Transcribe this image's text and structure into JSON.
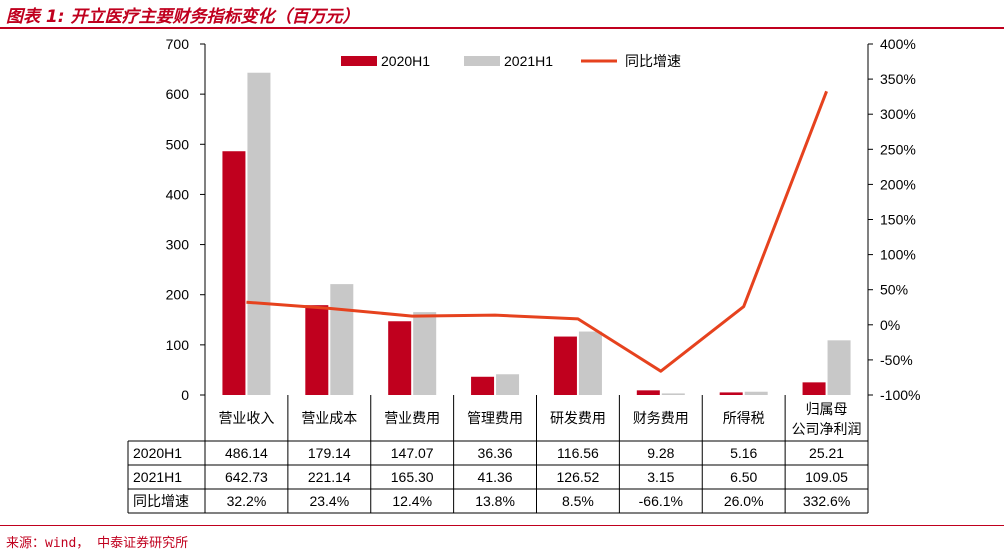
{
  "title": "图表 1:  开立医疗主要财务指标变化（百万元）",
  "source": "来源：wind， 中泰证券研究所",
  "colors": {
    "series_2020": "#c0001e",
    "series_2021": "#c8c8c8",
    "growth_line": "#e6421e",
    "accent": "#c0001e"
  },
  "chart_data": {
    "type": "bar",
    "categories": [
      "营业收入",
      "营业成本",
      "营业费用",
      "管理费用",
      "研发费用",
      "财务费用",
      "所得税",
      "归属母公司净利润"
    ],
    "category_lines": [
      [
        "营业收入"
      ],
      [
        "营业成本"
      ],
      [
        "营业费用"
      ],
      [
        "管理费用"
      ],
      [
        "研发费用"
      ],
      [
        "财务费用"
      ],
      [
        "所得税"
      ],
      [
        "归属母",
        "公司净利润"
      ]
    ],
    "series": [
      {
        "name": "2020H1",
        "values": [
          486.14,
          179.14,
          147.07,
          36.36,
          116.56,
          9.28,
          5.16,
          25.21
        ]
      },
      {
        "name": "2021H1",
        "values": [
          642.73,
          221.14,
          165.3,
          41.36,
          126.52,
          3.15,
          6.5,
          109.05
        ]
      }
    ],
    "line_series": {
      "name": "同比增速",
      "axis": "right",
      "values": [
        32.2,
        23.4,
        12.4,
        13.8,
        8.5,
        -66.1,
        26.0,
        332.6
      ]
    },
    "ylim": [
      0,
      700
    ],
    "yticks": [
      "0",
      "100",
      "200",
      "300",
      "400",
      "500",
      "600",
      "700"
    ],
    "y2lim": [
      -100,
      400
    ],
    "y2ticks": [
      "-100%",
      "-50%",
      "0%",
      "50%",
      "100%",
      "150%",
      "200%",
      "250%",
      "300%",
      "350%",
      "400%"
    ],
    "legend_position": "top-center",
    "grid": false,
    "table": {
      "rows": [
        {
          "label": "2020H1",
          "cells": [
            "486.14",
            "179.14",
            "147.07",
            "36.36",
            "116.56",
            "9.28",
            "5.16",
            "25.21"
          ]
        },
        {
          "label": "2021H1",
          "cells": [
            "642.73",
            "221.14",
            "165.30",
            "41.36",
            "126.52",
            "3.15",
            "6.50",
            "109.05"
          ]
        },
        {
          "label": "同比增速",
          "cells": [
            "32.2%",
            "23.4%",
            "12.4%",
            "13.8%",
            "8.5%",
            "-66.1%",
            "26.0%",
            "332.6%"
          ]
        }
      ]
    }
  }
}
